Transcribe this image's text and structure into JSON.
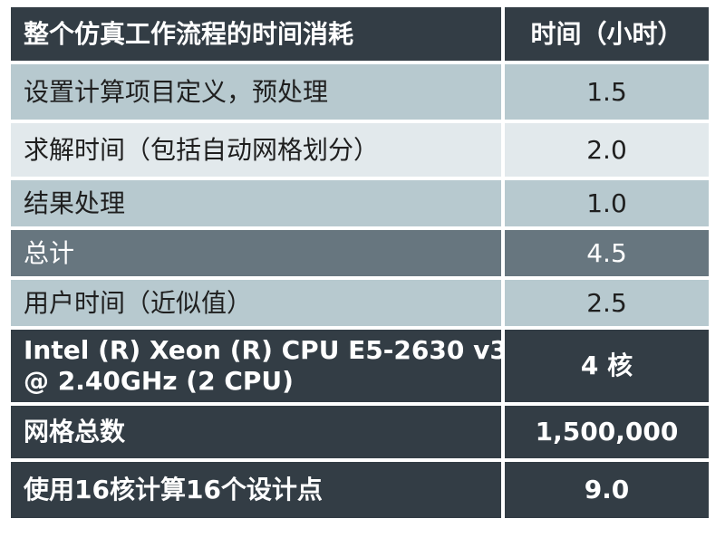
{
  "table": {
    "header": {
      "label": "整个仿真工作流程的时间消耗",
      "value": "时间（小时）"
    },
    "rows": [
      {
        "label": "设置计算项目定义，预处理",
        "value": "1.5"
      },
      {
        "label": "求解时间（包括自动网格划分）",
        "value": "2.0"
      },
      {
        "label": "结果处理",
        "value": "1.0"
      },
      {
        "label": "总计",
        "value": "4.5"
      },
      {
        "label": "用户时间（近似值）",
        "value": "2.5"
      },
      {
        "label_line1": "Intel (R) Xeon (R) CPU E5-2630 v3",
        "label_line2": "@ 2.40GHz (2 CPU)",
        "value": "4 核"
      },
      {
        "label": "网格总数",
        "value": "1,500,000"
      },
      {
        "label": "使用16核计算16个设计点",
        "value": "9.0"
      }
    ]
  },
  "colors": {
    "dark_row": "#333d45",
    "total_row": "#67767f",
    "light_row_a": "#b7c9cf",
    "light_row_b": "#e2e9ec"
  }
}
